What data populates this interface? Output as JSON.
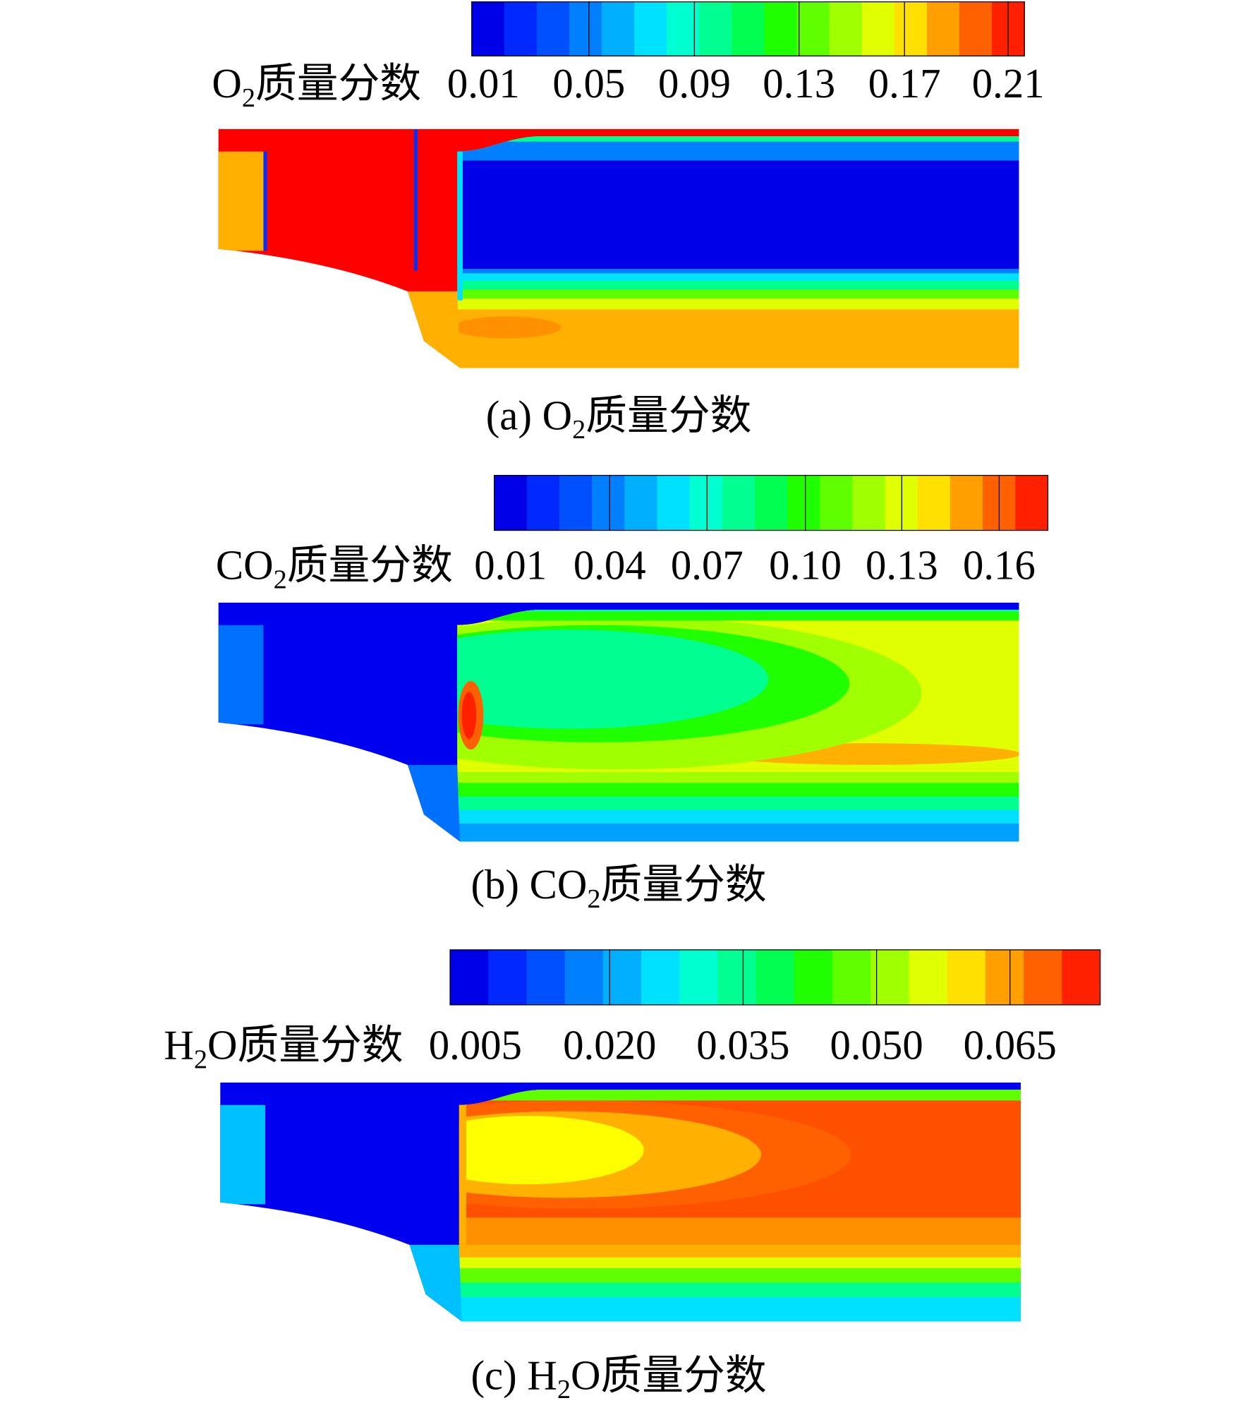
{
  "figure": {
    "panels": [
      {
        "legend": {
          "label": [
            "O",
            "2",
            "质量分数"
          ],
          "ticks": [
            "0.01",
            "0.05",
            "0.09",
            "0.13",
            "0.17",
            "0.21"
          ]
        },
        "caption": [
          "(a) O",
          "2",
          "质量分数"
        ]
      },
      {
        "legend": {
          "label": [
            "CO",
            "2",
            "质量分数"
          ],
          "ticks": [
            "0.01",
            "0.04",
            "0.07",
            "0.10",
            "0.13",
            "0.16"
          ]
        },
        "caption": [
          "(b) CO",
          "2",
          "质量分数"
        ]
      },
      {
        "legend": {
          "label": [
            "H",
            "2",
            "O质量分数"
          ],
          "ticks": [
            "0.005",
            "0.020",
            "0.035",
            "0.050",
            "0.065"
          ]
        },
        "caption": [
          "(c) H",
          "2",
          "O质量分数"
        ]
      }
    ]
  }
}
